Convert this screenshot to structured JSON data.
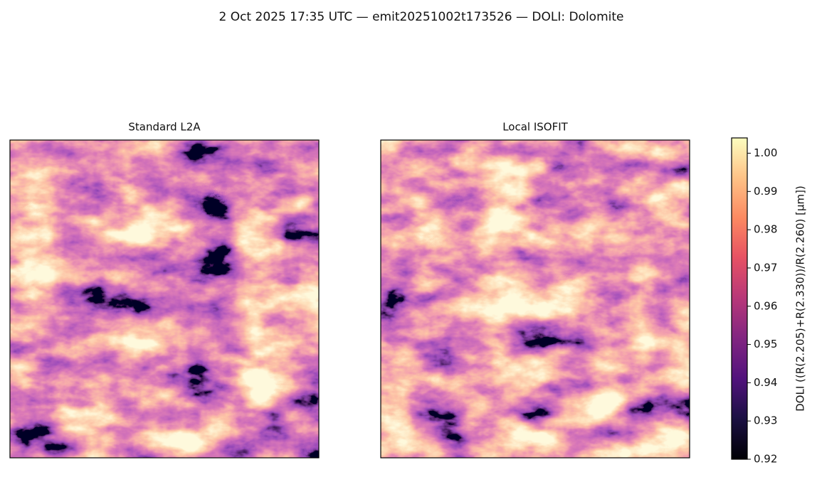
{
  "chart_data": {
    "type": "image",
    "title": "2 Oct 2025 17:35 UTC — emit20251002t173526 — DOLI: Dolomite",
    "panels": [
      {
        "title": "Standard L2A"
      },
      {
        "title": "Local ISOFIT"
      }
    ],
    "colorbar": {
      "label": "DOLI  ((R(2.205)+R(2.330))/R(2.260)  [µm])",
      "ylim": [
        0.92,
        1.004
      ],
      "yticks": [
        0.92,
        0.93,
        0.94,
        0.95,
        0.96,
        0.97,
        0.98,
        0.99,
        {
          "value": 1.0,
          "label": "1.00"
        }
      ]
    }
  }
}
